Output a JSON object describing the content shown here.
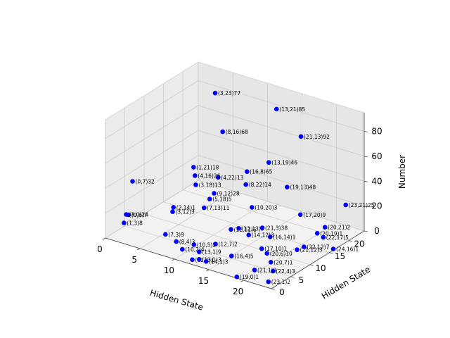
{
  "chart_data": {
    "type": "scatter",
    "title": "",
    "xlabel": "Hidden State",
    "ylabel": "Hidden State",
    "zlabel": "Number",
    "xlim": [
      0,
      24
    ],
    "ylim": [
      0,
      24
    ],
    "zlim": [
      0,
      95
    ],
    "xticks": [
      0,
      5,
      10,
      15,
      20
    ],
    "yticks": [
      0,
      5,
      10,
      15,
      20
    ],
    "zticks": [
      0,
      20,
      40,
      60,
      80
    ],
    "grid": true,
    "color": "#0000ff",
    "points": [
      {
        "x": 3,
        "y": 23,
        "z": 77,
        "label": "(3,23)77"
      },
      {
        "x": 13,
        "y": 21,
        "z": 85,
        "label": "(13,21)85"
      },
      {
        "x": 21,
        "y": 13,
        "z": 92,
        "label": "(21,13)92"
      },
      {
        "x": 8,
        "y": 16,
        "z": 68,
        "label": "(8,16)68"
      },
      {
        "x": 16,
        "y": 8,
        "z": 65,
        "label": "(16,8)65"
      },
      {
        "x": 13,
        "y": 19,
        "z": 46,
        "label": "(13,19)46"
      },
      {
        "x": 19,
        "y": 13,
        "z": 48,
        "label": "(19,13)48"
      },
      {
        "x": 23,
        "y": 21,
        "z": 25,
        "label": "(23,21)25"
      },
      {
        "x": 1,
        "y": 21,
        "z": 18,
        "label": "(1,21)18"
      },
      {
        "x": 0,
        "y": 7,
        "z": 32,
        "label": "(0,7)32"
      },
      {
        "x": 4,
        "y": 22,
        "z": 13,
        "label": "(4,22)13"
      },
      {
        "x": 3,
        "y": 18,
        "z": 13,
        "label": "(3,18)13"
      },
      {
        "x": 0,
        "y": 6,
        "z": 7,
        "label": "(0,6)7"
      },
      {
        "x": 4,
        "y": 16,
        "z": 26,
        "label": "(4,16)26"
      },
      {
        "x": 8,
        "y": 22,
        "z": 14,
        "label": "(8,22)14"
      },
      {
        "x": 9,
        "y": 12,
        "z": 28,
        "label": "(9,12)28"
      },
      {
        "x": 3,
        "y": 12,
        "z": 3,
        "label": "(3,12)3"
      },
      {
        "x": 5,
        "y": 18,
        "z": 5,
        "label": "(5,18)5"
      },
      {
        "x": 2,
        "y": 14,
        "z": 1,
        "label": "(2,14)1"
      },
      {
        "x": 7,
        "y": 13,
        "z": 11,
        "label": "(7,13)11"
      },
      {
        "x": 12,
        "y": 7,
        "z": 2,
        "label": "(12,7)2"
      },
      {
        "x": 10,
        "y": 20,
        "z": 3,
        "label": "(10,20)3"
      },
      {
        "x": 14,
        "y": 12,
        "z": 3,
        "label": "(14,12)3"
      },
      {
        "x": 12,
        "y": 1,
        "z": 1,
        "label": "(12,1)1"
      },
      {
        "x": 16,
        "y": 14,
        "z": 1,
        "label": "(16,14)1"
      },
      {
        "x": 12,
        "y": 13,
        "z": 3,
        "label": "(12,13)3"
      },
      {
        "x": 1,
        "y": 3,
        "z": 8,
        "label": "(1,3)8"
      },
      {
        "x": 3,
        "y": 0,
        "z": 24,
        "label": "(3,0)24"
      },
      {
        "x": 7,
        "y": 3,
        "z": 9,
        "label": "(7,3)9"
      },
      {
        "x": 8,
        "y": 4,
        "z": 3,
        "label": "(8,4)3"
      },
      {
        "x": 10,
        "y": 5,
        "z": 2,
        "label": "(10,5)2"
      },
      {
        "x": 13,
        "y": 1,
        "z": 9,
        "label": "(13,1)9"
      },
      {
        "x": 10,
        "y": 2,
        "z": 4,
        "label": "(10,2)4"
      },
      {
        "x": 14,
        "y": 1,
        "z": 3,
        "label": "(14,1)3"
      },
      {
        "x": 16,
        "y": 4,
        "z": 5,
        "label": "(16,4)5"
      },
      {
        "x": 17,
        "y": 10,
        "z": 1,
        "label": "(17,10)1"
      },
      {
        "x": 21,
        "y": 3,
        "z": 38,
        "label": "(21,3)38"
      },
      {
        "x": 17,
        "y": 20,
        "z": 9,
        "label": "(17,20)9"
      },
      {
        "x": 20,
        "y": 21,
        "z": 2,
        "label": "(20,21)2"
      },
      {
        "x": 20,
        "y": 19,
        "z": 1,
        "label": "(20,19)1"
      },
      {
        "x": 20,
        "y": 7,
        "z": 1,
        "label": "(20,7)1"
      },
      {
        "x": 24,
        "y": 16,
        "z": 1,
        "label": "(24,16)1"
      },
      {
        "x": 22,
        "y": 12,
        "z": 7,
        "label": "(22,12)7"
      },
      {
        "x": 20,
        "y": 6,
        "z": 10,
        "label": "(20,6)10"
      },
      {
        "x": 22,
        "y": 4,
        "z": 3,
        "label": "(22,4)3"
      },
      {
        "x": 19,
        "y": 0,
        "z": 1,
        "label": "(19,0)1"
      },
      {
        "x": 23,
        "y": 1,
        "z": 2,
        "label": "(23,1)2"
      },
      {
        "x": 21,
        "y": 1,
        "z": 8,
        "label": "(21,1)8"
      },
      {
        "x": 22,
        "y": 17,
        "z": 5,
        "label": "(22,17)5"
      },
      {
        "x": 21,
        "y": 12,
        "z": 3,
        "label": "(21,12)3"
      },
      {
        "x": 13,
        "y": 1,
        "z": 3,
        "label": "(13,1)3"
      },
      {
        "x": 12,
        "y": 11,
        "z": 6,
        "label": "(12,11)6"
      }
    ]
  }
}
